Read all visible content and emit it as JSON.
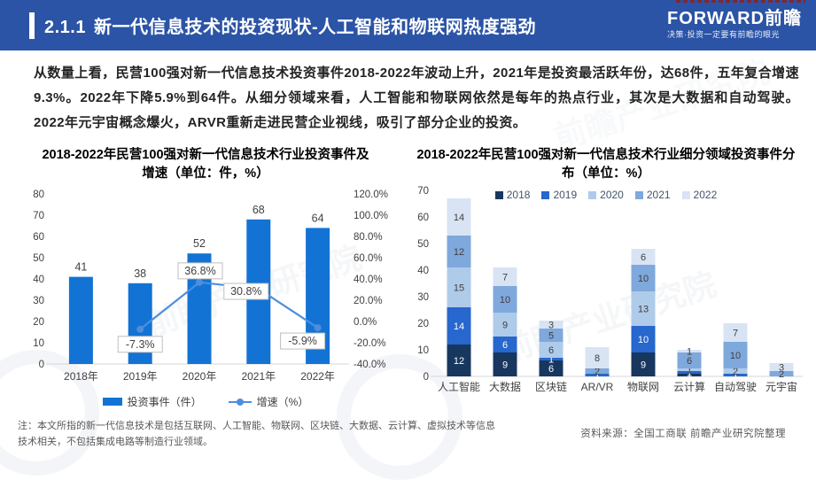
{
  "header": {
    "section_number": "2.1.1",
    "title": "新一代信息技术的投资现状-人工智能和物联网热度强劲",
    "banner_color": "#2B54A6",
    "logo": {
      "brand": "FORWARD前瞻",
      "tagline": "决策·投资一定要有前瞻的眼光"
    }
  },
  "body_paragraph": "从数量上看，民营100强对新一代信息技术投资事件2018-2022年波动上升，2021年是投资最活跃年份，达68件，五年复合增速9.3%。2022年下降5.9%到64件。从细分领域来看，人工智能和物联网依然是每年的热点行业，其次是大数据和自动驾驶。2022年元宇宙概念爆火，ARVR重新走进民营企业视线，吸引了部分企业的投资。",
  "watermark_text": "前瞻产业研究院",
  "chart_data": [
    {
      "type": "bar",
      "subtype": "bar-line-combo",
      "title": "2018-2022年民营100强对新一代信息技术行业投资事件及增速（单位：件，%）",
      "categories": [
        "2018年",
        "2019年",
        "2020年",
        "2021年",
        "2022年"
      ],
      "series": [
        {
          "name": "投资事件（件）",
          "type": "bar",
          "axis": "left",
          "color": "#1273D4",
          "values": [
            41,
            38,
            52,
            68,
            64
          ]
        },
        {
          "name": "增速（%）",
          "type": "line",
          "axis": "right",
          "color": "#4E8EDC",
          "values": [
            null,
            -7.3,
            36.8,
            30.8,
            -5.9
          ],
          "labels": [
            null,
            "-7.3%",
            "36.8%",
            "30.8%",
            "-5.9%"
          ]
        }
      ],
      "left_axis": {
        "min": 0,
        "max": 80,
        "step": 10,
        "ticks": [
          "0",
          "10",
          "20",
          "30",
          "40",
          "50",
          "60",
          "70",
          "80"
        ]
      },
      "right_axis": {
        "min": -40,
        "max": 120,
        "step": 20,
        "ticks": [
          "-40.0%",
          "-20.0%",
          "0.0%",
          "20.0%",
          "40.0%",
          "60.0%",
          "80.0%",
          "100.0%",
          "120.0%"
        ]
      },
      "grid": false,
      "legend_position": "bottom"
    },
    {
      "type": "bar",
      "subtype": "stacked",
      "title": "2018-2022年民营100强对新一代信息技术行业细分领域投资事件分布（单位：%）",
      "categories": [
        "人工智能",
        "大数据",
        "区块链",
        "AR/VR",
        "物联网",
        "云计算",
        "自动驾驶",
        "元宇宙"
      ],
      "series": [
        {
          "name": "2018",
          "color": "#17375E",
          "values": [
            12,
            9,
            6,
            0,
            9,
            1,
            0,
            0
          ]
        },
        {
          "name": "2019",
          "color": "#2767CE",
          "values": [
            14,
            6,
            1,
            1,
            10,
            1,
            1,
            0
          ]
        },
        {
          "name": "2020",
          "color": "#AFCBEA",
          "values": [
            15,
            9,
            6,
            0,
            13,
            1,
            2,
            0
          ]
        },
        {
          "name": "2021",
          "color": "#7FA8DC",
          "values": [
            12,
            10,
            5,
            2,
            10,
            6,
            10,
            2
          ]
        },
        {
          "name": "2022",
          "color": "#D8E4F4",
          "values": [
            14,
            7,
            3,
            8,
            6,
            1,
            7,
            3
          ]
        }
      ],
      "y_axis": {
        "min": 0,
        "max": 70,
        "step": 10,
        "ticks": [
          "0",
          "10",
          "20",
          "30",
          "40",
          "50",
          "60",
          "70"
        ]
      },
      "grid": false,
      "legend_position": "top"
    }
  ],
  "footer": {
    "note": "注：本文所指的新一代信息技术是包括互联网、人工智能、物联网、区块链、大数据、云计算、虚拟技术等信息技术相关，不包括集成电路等制造行业领域。",
    "source": "资料来源：全国工商联  前瞻产业研究院整理"
  }
}
